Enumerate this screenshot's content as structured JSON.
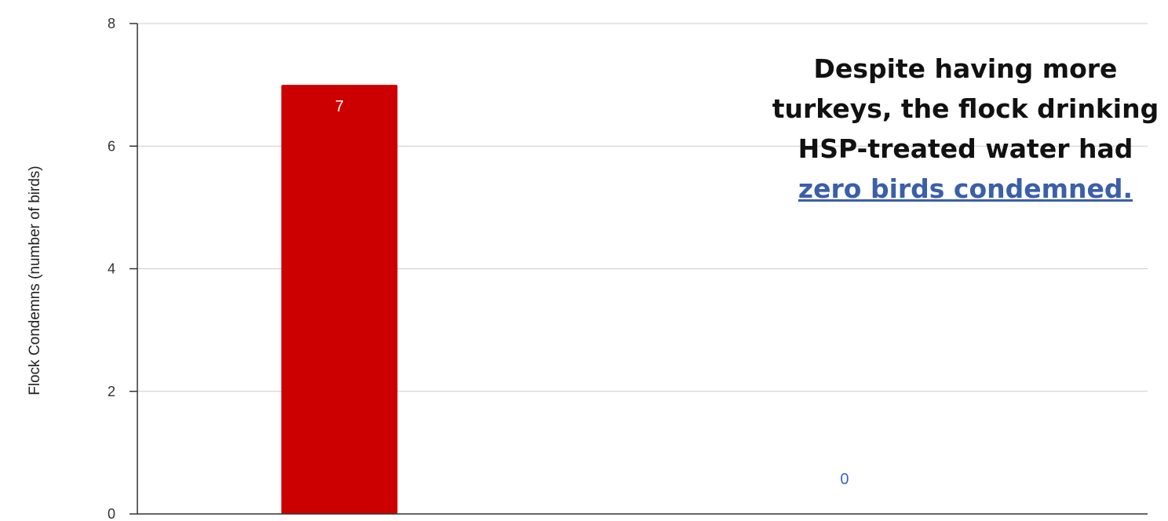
{
  "chart_data": {
    "type": "bar",
    "categories": [
      "",
      ""
    ],
    "values": [
      7,
      0
    ],
    "data_labels": [
      "7",
      "0"
    ],
    "bar_colors": [
      "#cc0000",
      "#3366cc"
    ],
    "label_colors": [
      "#ffffff",
      "#3366cc"
    ],
    "title": "",
    "xlabel": "",
    "ylabel": "Flock Condemns (number of birds)",
    "ylim": [
      0,
      8
    ],
    "yticks": [
      0,
      2,
      4,
      6,
      8
    ],
    "grid": true,
    "annotation": {
      "text": "Despite having more turkeys, the flock drinking HSP-treated water had ",
      "highlight": "zero birds condemned."
    }
  },
  "colors": {
    "gridline": "#cccccc",
    "axis": "#333333",
    "annotation_highlight": "#3b5fa8"
  }
}
